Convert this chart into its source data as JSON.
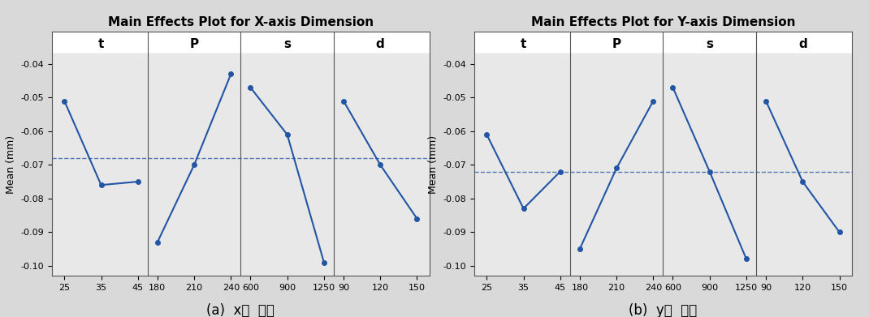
{
  "plot_x": {
    "title": "Main Effects Plot for X-axis Dimension",
    "ylabel": "Mean (mm)",
    "groups": [
      "t",
      "P",
      "s",
      "d"
    ],
    "xvalues": [
      [
        25,
        35,
        45
      ],
      [
        180,
        210,
        240
      ],
      [
        600,
        900,
        1250
      ],
      [
        90,
        120,
        150
      ]
    ],
    "yvalues": [
      [
        -0.051,
        -0.076,
        -0.075
      ],
      [
        -0.093,
        -0.07,
        -0.043
      ],
      [
        -0.047,
        -0.061,
        -0.099
      ],
      [
        -0.051,
        -0.07,
        -0.086
      ]
    ],
    "grand_mean": -0.068,
    "ylim": [
      -0.103,
      -0.037
    ],
    "yticks": [
      -0.04,
      -0.05,
      -0.06,
      -0.07,
      -0.08,
      -0.09,
      -0.1
    ],
    "caption": "(a)  x축  치수"
  },
  "plot_y": {
    "title": "Main Effects Plot for Y-axis Dimension",
    "ylabel": "Mean (mm)",
    "groups": [
      "t",
      "P",
      "s",
      "d"
    ],
    "xvalues": [
      [
        25,
        35,
        45
      ],
      [
        180,
        210,
        240
      ],
      [
        600,
        900,
        1250
      ],
      [
        90,
        120,
        150
      ]
    ],
    "yvalues": [
      [
        -0.061,
        -0.083,
        -0.072
      ],
      [
        -0.095,
        -0.071,
        -0.051
      ],
      [
        -0.047,
        -0.072,
        -0.098
      ],
      [
        -0.051,
        -0.075,
        -0.09
      ]
    ],
    "grand_mean": -0.072,
    "ylim": [
      -0.103,
      -0.037
    ],
    "yticks": [
      -0.04,
      -0.05,
      -0.06,
      -0.07,
      -0.08,
      -0.09,
      -0.1
    ],
    "caption": "(b)  y축  치수"
  },
  "line_color": "#2255a4",
  "marker": "o",
  "marker_size": 4,
  "bg_color": "#d9d9d9",
  "plot_bg_color": "#e8e8e8",
  "header_bg_color": "#ffffff",
  "title_fontsize": 11,
  "label_fontsize": 9,
  "tick_fontsize": 8,
  "caption_fontsize": 12,
  "group_label_fontsize": 11
}
